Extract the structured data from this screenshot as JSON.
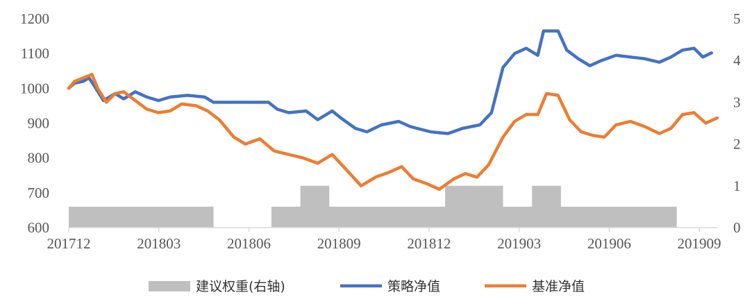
{
  "chart_data": {
    "type": "line",
    "title": "",
    "xlabel": "",
    "ylabel": "",
    "ylim": [
      600,
      1200
    ],
    "y2lim": [
      0,
      5
    ],
    "yticks": [
      600,
      700,
      800,
      900,
      1000,
      1100,
      1200
    ],
    "y2ticks": [
      0,
      1,
      2,
      3,
      4,
      5
    ],
    "x_tick_labels": [
      "201712",
      "201803",
      "201806",
      "201809",
      "201812",
      "201903",
      "201906",
      "201909"
    ],
    "legend_position": "bottom",
    "grid": false,
    "series": [
      {
        "name": "建议权重(右轴)",
        "type": "area",
        "axis": "right",
        "color": "#bfbfbf",
        "points": [
          [
            0,
            0.5
          ],
          [
            5,
            0.5
          ],
          [
            5,
            0
          ],
          [
            7,
            0
          ],
          [
            7,
            0.5
          ],
          [
            8,
            0.5
          ],
          [
            8,
            1
          ],
          [
            9,
            1
          ],
          [
            9,
            0.5
          ],
          [
            13,
            0.5
          ],
          [
            13,
            1
          ],
          [
            15,
            1
          ],
          [
            15,
            0.5
          ],
          [
            16,
            0.5
          ],
          [
            16,
            1
          ],
          [
            17,
            1
          ],
          [
            17,
            0.5
          ],
          [
            21,
            0.5
          ]
        ]
      },
      {
        "name": "策略净值",
        "type": "line",
        "axis": "left",
        "color": "#4472c4",
        "points": [
          [
            0,
            1000
          ],
          [
            0.2,
            1015
          ],
          [
            0.5,
            1020
          ],
          [
            0.7,
            1030
          ],
          [
            0.9,
            1005
          ],
          [
            1.2,
            965
          ],
          [
            1.6,
            985
          ],
          [
            1.9,
            970
          ],
          [
            2.3,
            990
          ],
          [
            2.7,
            975
          ],
          [
            3.1,
            965
          ],
          [
            3.5,
            975
          ],
          [
            4.1,
            980
          ],
          [
            4.7,
            975
          ],
          [
            5.0,
            960
          ],
          [
            6.0,
            960
          ],
          [
            6.9,
            960
          ],
          [
            7.2,
            940
          ],
          [
            7.6,
            930
          ],
          [
            8.2,
            935
          ],
          [
            8.6,
            910
          ],
          [
            9.1,
            935
          ],
          [
            9.4,
            915
          ],
          [
            9.9,
            885
          ],
          [
            10.3,
            875
          ],
          [
            10.8,
            895
          ],
          [
            11.4,
            905
          ],
          [
            11.8,
            890
          ],
          [
            12.5,
            875
          ],
          [
            13.1,
            870
          ],
          [
            13.6,
            885
          ],
          [
            14.2,
            895
          ],
          [
            14.6,
            930
          ],
          [
            15.0,
            1060
          ],
          [
            15.4,
            1100
          ],
          [
            15.8,
            1115
          ],
          [
            16.2,
            1095
          ],
          [
            16.4,
            1165
          ],
          [
            16.7,
            1165
          ],
          [
            16.9,
            1165
          ],
          [
            17.2,
            1110
          ],
          [
            17.6,
            1085
          ],
          [
            18.0,
            1065
          ],
          [
            18.4,
            1080
          ],
          [
            18.9,
            1095
          ],
          [
            19.4,
            1090
          ],
          [
            19.9,
            1085
          ],
          [
            20.4,
            1075
          ],
          [
            20.8,
            1090
          ],
          [
            21.2,
            1110
          ],
          [
            21.6,
            1115
          ],
          [
            21.9,
            1090
          ],
          [
            22.2,
            1102
          ]
        ]
      },
      {
        "name": "基准净值",
        "type": "line",
        "axis": "left",
        "color": "#ed7d31",
        "points": [
          [
            0,
            1000
          ],
          [
            0.2,
            1020
          ],
          [
            0.5,
            1030
          ],
          [
            0.8,
            1040
          ],
          [
            1.0,
            1000
          ],
          [
            1.3,
            960
          ],
          [
            1.6,
            985
          ],
          [
            1.9,
            990
          ],
          [
            2.3,
            965
          ],
          [
            2.7,
            940
          ],
          [
            3.1,
            930
          ],
          [
            3.5,
            935
          ],
          [
            3.9,
            955
          ],
          [
            4.4,
            950
          ],
          [
            4.8,
            935
          ],
          [
            5.2,
            910
          ],
          [
            5.7,
            860
          ],
          [
            6.1,
            840
          ],
          [
            6.6,
            855
          ],
          [
            7.1,
            820
          ],
          [
            7.6,
            810
          ],
          [
            8.1,
            800
          ],
          [
            8.6,
            785
          ],
          [
            9.1,
            810
          ],
          [
            9.6,
            765
          ],
          [
            10.1,
            720
          ],
          [
            10.6,
            745
          ],
          [
            11.1,
            760
          ],
          [
            11.5,
            775
          ],
          [
            11.9,
            740
          ],
          [
            12.4,
            725
          ],
          [
            12.8,
            710
          ],
          [
            13.3,
            740
          ],
          [
            13.7,
            755
          ],
          [
            14.1,
            745
          ],
          [
            14.5,
            780
          ],
          [
            15.0,
            860
          ],
          [
            15.4,
            905
          ],
          [
            15.8,
            925
          ],
          [
            16.2,
            925
          ],
          [
            16.5,
            985
          ],
          [
            16.9,
            980
          ],
          [
            17.3,
            910
          ],
          [
            17.7,
            875
          ],
          [
            18.1,
            865
          ],
          [
            18.5,
            860
          ],
          [
            18.9,
            895
          ],
          [
            19.4,
            905
          ],
          [
            19.9,
            890
          ],
          [
            20.4,
            870
          ],
          [
            20.8,
            885
          ],
          [
            21.2,
            925
          ],
          [
            21.6,
            930
          ],
          [
            22.0,
            900
          ],
          [
            22.4,
            915
          ]
        ]
      }
    ]
  }
}
